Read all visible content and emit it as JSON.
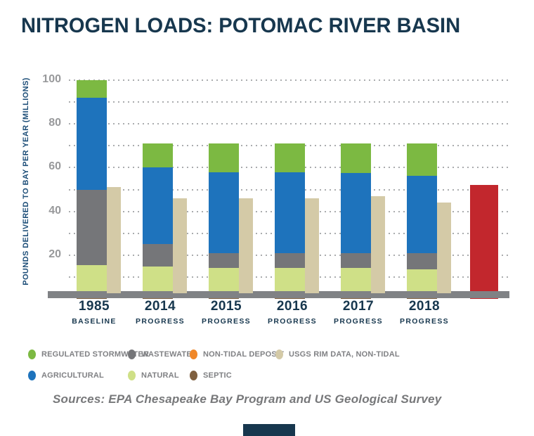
{
  "title": "NITROGEN LOADS: POTOMAC RIVER BASIN",
  "sources": "Sources: EPA Chesapeake Bay Program and US Geological Survey",
  "colors": {
    "title_navy": "#17374e",
    "axis_label_blue": "#1d4e78",
    "tick_gray": "#98999b",
    "axis_bar_gray": "#808285",
    "legend_text_gray": "#808184",
    "background": "#ffffff"
  },
  "chart_data": {
    "type": "bar",
    "stacked": true,
    "title": "NITROGEN LOADS: POTOMAC RIVER BASIN",
    "xlabel": "",
    "ylabel": "POUNDS DELIVERED TO BAY PER YEAR (MILLIONS)",
    "ylim": [
      0,
      104
    ],
    "major_ticks": [
      20,
      40,
      60,
      80,
      100
    ],
    "gridlines_every": 10,
    "grid_style": "dotted",
    "legend_position": "bottom",
    "categories": [
      {
        "label": "1985",
        "sublabel": "BASELINE"
      },
      {
        "label": "2014",
        "sublabel": "PROGRESS"
      },
      {
        "label": "2015",
        "sublabel": "PROGRESS"
      },
      {
        "label": "2016",
        "sublabel": "PROGRESS"
      },
      {
        "label": "2017",
        "sublabel": "PROGRESS"
      },
      {
        "label": "2018",
        "sublabel": "PROGRESS"
      }
    ],
    "series": [
      {
        "name": "SEPTIC",
        "color": "#7f6040",
        "values": [
          2.0,
          2.0,
          2.3,
          2.3,
          2.3,
          2.3
        ]
      },
      {
        "name": "NON-TIDAL DEPOSIT",
        "color": "#f08728",
        "values": [
          0.7,
          0.7,
          0.5,
          0.5,
          0.5,
          0.5
        ]
      },
      {
        "name": "NATURAL",
        "color": "#cfe087",
        "values": [
          12.8,
          12.0,
          11.2,
          11.2,
          11.2,
          10.7
        ]
      },
      {
        "name": "WASTEWATER",
        "color": "#757679",
        "values": [
          34.5,
          10.3,
          7.0,
          6.8,
          7.0,
          7.3
        ]
      },
      {
        "name": "AGRICULTURAL",
        "color": "#1e73bc",
        "values": [
          42.0,
          35.0,
          37.0,
          37.2,
          36.7,
          35.5
        ]
      },
      {
        "name": "REGULATED STORMWATER",
        "color": "#7cb942",
        "values": [
          8.0,
          11.0,
          13.0,
          13.0,
          13.3,
          14.7
        ]
      }
    ],
    "stack_totals": [
      100,
      71,
      71,
      71,
      71,
      71
    ],
    "companion_series": {
      "name": "USGS RIM DATA, NON-TIDAL",
      "color": "#d4caa7",
      "values": [
        51,
        46,
        46,
        46,
        47,
        44
      ]
    },
    "target_bar": {
      "value": 52,
      "color": "#c2272d",
      "label": ""
    }
  },
  "legend": {
    "items": [
      {
        "label": "REGULATED STORMWATER",
        "color": "#7cb942"
      },
      {
        "label": "WASTEWATER",
        "color": "#757679"
      },
      {
        "label": "NON-TIDAL DEPOSIT",
        "color": "#f08728"
      },
      {
        "label": "USGS RIM DATA, NON-TIDAL",
        "color": "#d4caa7"
      },
      {
        "label": "AGRICULTURAL",
        "color": "#1e73bc"
      },
      {
        "label": "NATURAL",
        "color": "#cfe087"
      },
      {
        "label": "SEPTIC",
        "color": "#7f6040"
      }
    ]
  }
}
